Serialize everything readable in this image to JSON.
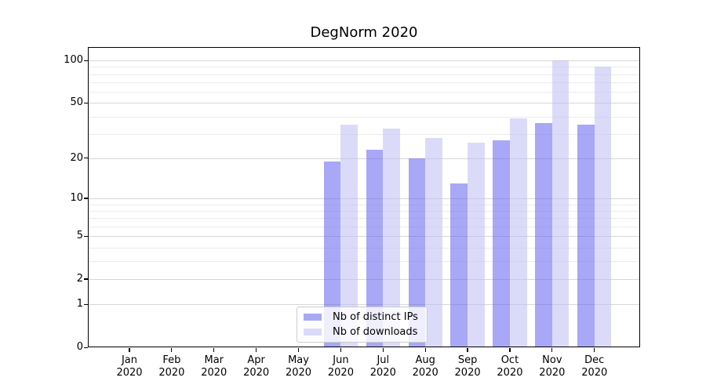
{
  "chart_data": {
    "type": "bar",
    "title": "DegNorm 2020",
    "categories": [
      "Jan",
      "Feb",
      "Mar",
      "Apr",
      "May",
      "Jun",
      "Jul",
      "Aug",
      "Sep",
      "Oct",
      "Nov",
      "Dec"
    ],
    "category_year": "2020",
    "series": [
      {
        "name": "Nb of distinct IPs",
        "slug": "distinct-ips",
        "color": "#a9a9f8",
        "fill": "rgba(99,99,239,0.56)",
        "values": [
          0,
          0,
          0,
          0,
          0,
          19,
          23,
          20,
          13,
          27,
          36,
          35
        ]
      },
      {
        "name": "Nb of downloads",
        "slug": "downloads",
        "color": "#dcdcf8",
        "fill": "rgba(190,190,245,0.56)",
        "values": [
          0,
          0,
          0,
          0,
          0,
          35,
          33,
          28,
          26,
          39,
          100,
          90
        ]
      }
    ],
    "y_axis": {
      "scale": "log1p",
      "major_ticks": [
        0,
        1,
        2,
        5,
        10,
        20,
        50,
        100
      ],
      "minor_ticks": [
        3,
        4,
        6,
        7,
        8,
        9,
        30,
        40,
        60,
        70,
        80,
        90
      ],
      "max": 123
    },
    "x_axis": {
      "tick_label_format": "month-over-year"
    },
    "grid": "horizontal",
    "legend_position": "lower-center",
    "colors": {
      "major_grid": "#d7d7d7",
      "minor_grid": "#ececec",
      "spine": "#000000"
    }
  }
}
